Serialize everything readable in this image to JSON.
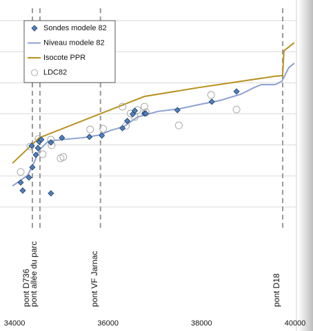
{
  "chart_data": {
    "type": "line",
    "xlim": [
      33955,
      40000
    ],
    "xticks": [
      34000,
      36000,
      38000,
      40000
    ],
    "ylim": [
      0,
      7
    ],
    "yticks": [
      1,
      2,
      3,
      4,
      5,
      6,
      7
    ],
    "grid": true,
    "legend": "upper left",
    "series": [
      {
        "name": "Sondes modele 82",
        "type": "scatter",
        "color": "#4f81bd",
        "x": [
          34132,
          34176,
          34309,
          34382,
          34368,
          34456,
          34500,
          34529,
          34573,
          34779,
          35014,
          34779,
          35602,
          35867,
          36308,
          36411,
          36528,
          36573,
          36778,
          36808,
          37484,
          38219,
          38748
        ],
        "values": [
          1.79,
          1.53,
          1.95,
          2.28,
          2.97,
          2.68,
          2.9,
          3.1,
          3.17,
          3.08,
          3.23,
          1.44,
          3.26,
          3.3,
          3.54,
          3.77,
          3.99,
          4.1,
          4.01,
          4.01,
          4.12,
          4.39,
          4.72
        ]
      },
      {
        "name": "Niveau modele 82",
        "type": "line",
        "color": "#8e9fd2",
        "x": [
          33956,
          34132,
          34279,
          34353,
          34426,
          34500,
          34573,
          34720,
          35014,
          35455,
          35823,
          36043,
          36337,
          36632,
          37073,
          37514,
          37955,
          38396,
          38837,
          39131,
          39278,
          39572,
          39719,
          39866,
          39984
        ],
        "values": [
          1.68,
          1.86,
          2.02,
          2.24,
          2.46,
          2.75,
          2.9,
          3.12,
          3.17,
          3.23,
          3.32,
          3.46,
          3.59,
          3.9,
          4.08,
          4.16,
          4.3,
          4.43,
          4.63,
          4.85,
          4.94,
          4.94,
          5.05,
          5.49,
          5.63
        ]
      },
      {
        "name": "Isocote PPR",
        "type": "line",
        "color": "#b8901c",
        "x": [
          33956,
          34529,
          36778,
          37954,
          39571,
          39733,
          39762,
          39982
        ],
        "values": [
          2.41,
          3.23,
          4.56,
          4.85,
          5.21,
          5.23,
          6.03,
          6.29
        ]
      },
      {
        "name": "LDC82",
        "type": "circle",
        "color": "#aaaaaa",
        "x": [
          34132,
          34338,
          34515,
          34603,
          34779,
          34794,
          34985,
          35044,
          35617,
          35896,
          36308,
          36381,
          36484,
          36573,
          36632,
          36778,
          36808,
          37514,
          38205,
          38748
        ],
        "values": [
          2.13,
          2.95,
          3.19,
          2.7,
          3.17,
          2.99,
          2.57,
          2.61,
          3.5,
          3.52,
          4.23,
          3.61,
          4.01,
          3.9,
          4.12,
          4.23,
          4.05,
          3.63,
          4.61,
          4.14
        ]
      }
    ],
    "annotations": [
      {
        "text": "pont D736",
        "x": 34382
      },
      {
        "text": "pont allée du parc",
        "x": 34544
      },
      {
        "text": "pont VF Jarnac",
        "x": 35838
      },
      {
        "text": "pont D18",
        "x": 39735
      }
    ]
  }
}
